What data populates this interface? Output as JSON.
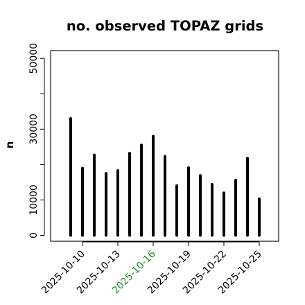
{
  "chart_data": {
    "type": "bar",
    "style": "histogram-lines",
    "title": "no. observed TOPAZ grids",
    "xlabel": "",
    "ylabel": "n",
    "ylim": [
      0,
      52000
    ],
    "y_ticks": [
      0,
      10000,
      20000,
      30000,
      40000,
      50000
    ],
    "y_tick_labels": [
      "0",
      "10000",
      "",
      "30000",
      "",
      "50000"
    ],
    "x": [
      "2025-10-09",
      "2025-10-10",
      "2025-10-11",
      "2025-10-12",
      "2025-10-13",
      "2025-10-14",
      "2025-10-15",
      "2025-10-16",
      "2025-10-17",
      "2025-10-18",
      "2025-10-19",
      "2025-10-20",
      "2025-10-21",
      "2025-10-22",
      "2025-10-23",
      "2025-10-24",
      "2025-10-25"
    ],
    "values": [
      33000,
      19000,
      22700,
      17500,
      18300,
      23200,
      25500,
      28000,
      22300,
      14000,
      19100,
      16900,
      14400,
      12000,
      15600,
      21800,
      10300
    ],
    "x_tick_labels": [
      "2025-10-10",
      "2025-10-13",
      "2025-10-16",
      "2025-10-19",
      "2025-10-22",
      "2025-10-25"
    ],
    "x_tick_values": [
      "2025-10-10",
      "2025-10-13",
      "2025-10-16",
      "2025-10-19",
      "2025-10-22",
      "2025-10-25"
    ],
    "highlight_tick": "2025-10-16",
    "bar_color": "#000000",
    "highlight_color": "#228B22",
    "grid": false,
    "legend": "none"
  }
}
